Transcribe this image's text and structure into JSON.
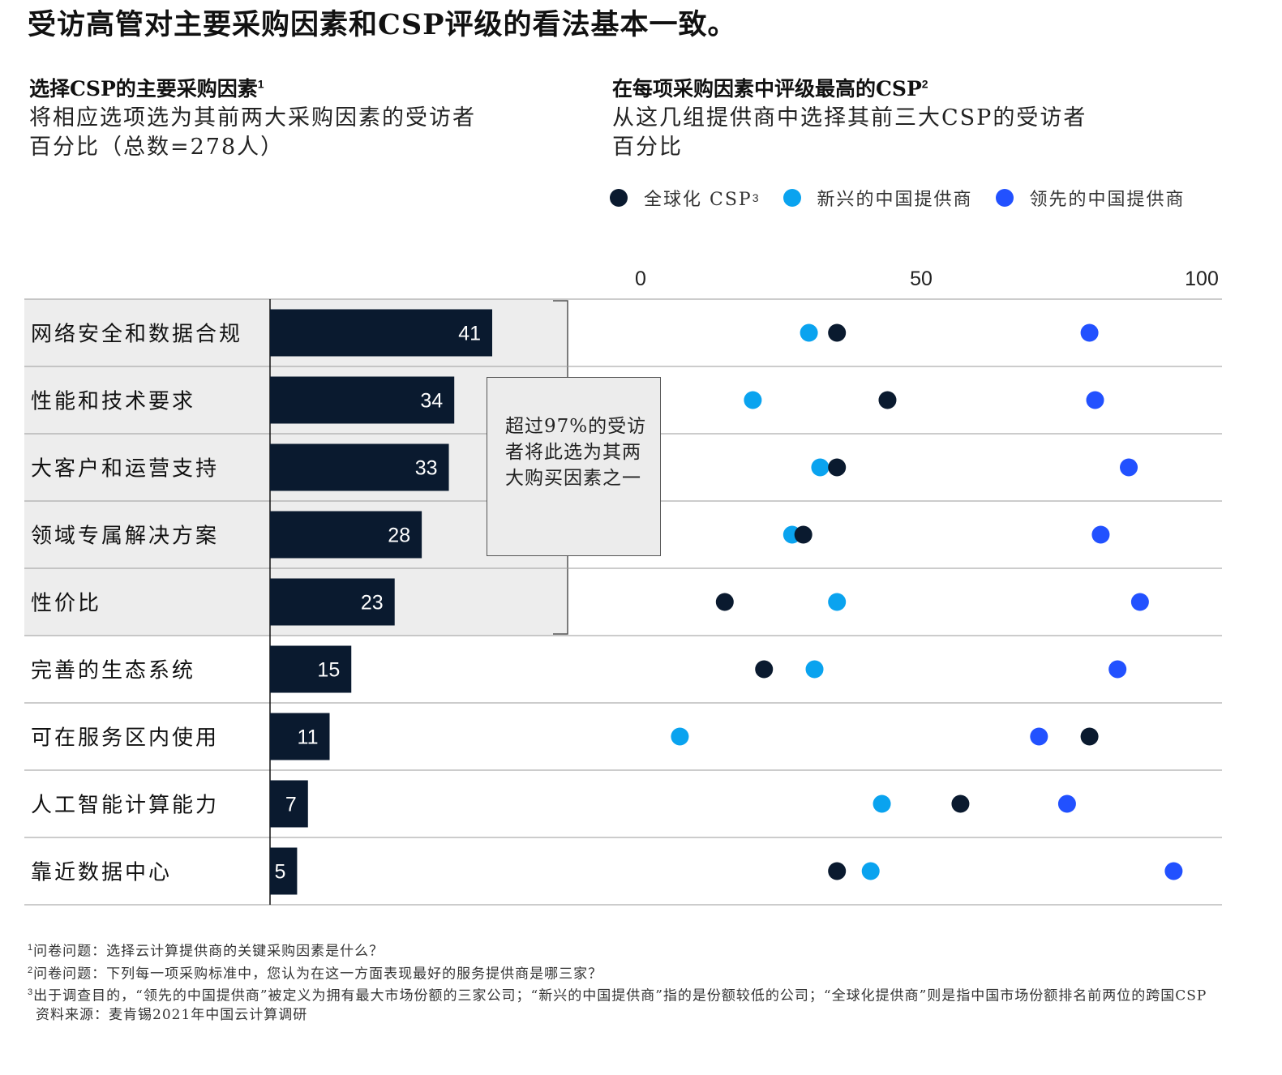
{
  "headline": "受访高管对主要采购因素和CSP评级的看法基本一致。",
  "left_panel": {
    "title": "选择CSP的主要采购因素",
    "title_sup": "1",
    "subtitle_line1": "将相应选项选为其前两大采购因素的受访者",
    "subtitle_line2": "百分比（总数=278人）"
  },
  "right_panel": {
    "title": "在每项采购因素中评级最高的CSP",
    "title_sup": "2",
    "subtitle_line1": "从这几组提供商中选择其前三大CSP的受访者",
    "subtitle_line2": "百分比"
  },
  "legend": [
    {
      "label": "全球化 CSP",
      "sup": "3",
      "color": "#0a1a2f"
    },
    {
      "label": "新兴的中国提供商",
      "sup": "",
      "color": "#0aa3ef"
    },
    {
      "label": "领先的中国提供商",
      "sup": "",
      "color": "#2251ff"
    }
  ],
  "callout": "超过97%的受访者将此选为其两大购买因素之一",
  "colors": {
    "bar": "#0a1a2f",
    "shade": "#ededed",
    "global": "#0a1a2f",
    "emerging": "#0aa3ef",
    "leading": "#2251ff"
  },
  "chart_data": [
    {
      "type": "bar",
      "orientation": "horizontal",
      "title": "选择CSP的主要采购因素",
      "categories": [
        "网络安全和数据合规",
        "性能和技术要求",
        "大客户和运营支持",
        "领域专属解决方案",
        "性价比",
        "完善的生态系统",
        "可在服务区内使用",
        "人工智能计算能力",
        "靠近数据中心"
      ],
      "values": [
        41,
        34,
        33,
        28,
        23,
        15,
        11,
        7,
        5
      ],
      "highlighted_count": 5
    },
    {
      "type": "scatter",
      "title": "在每项采购因素中评级最高的CSP",
      "categories": [
        "网络安全和数据合规",
        "性能和技术要求",
        "大客户和运营支持",
        "领域专属解决方案",
        "性价比",
        "完善的生态系统",
        "可在服务区内使用",
        "人工智能计算能力",
        "靠近数据中心"
      ],
      "xlim": [
        0,
        100
      ],
      "xticks": [
        "0",
        "50",
        "100"
      ],
      "series": [
        {
          "name": "全球化 CSP",
          "values": [
            35,
            44,
            35,
            29,
            15,
            22,
            80,
            57,
            35
          ]
        },
        {
          "name": "新兴的中国提供商",
          "values": [
            30,
            20,
            32,
            27,
            35,
            31,
            7,
            43,
            41
          ]
        },
        {
          "name": "领先的中国提供商",
          "values": [
            80,
            81,
            87,
            82,
            89,
            85,
            71,
            76,
            95
          ]
        }
      ]
    }
  ],
  "footnotes": [
    {
      "n": "1",
      "text": "问卷问题：选择云计算提供商的关键采购因素是什么？"
    },
    {
      "n": "2",
      "text": "问卷问题：下列每一项采购标准中，您认为在这一方面表现最好的服务提供商是哪三家？"
    },
    {
      "n": "3",
      "text": "出于调查目的，“领先的中国提供商”被定义为拥有最大市场份额的三家公司；“新兴的中国提供商”指的是份额较低的公司；“全球化提供商”则是指中国市场份额排名前两位的跨国CSP"
    },
    {
      "n": "",
      "text": "资料来源：麦肯锡2021年中国云计算调研"
    }
  ]
}
